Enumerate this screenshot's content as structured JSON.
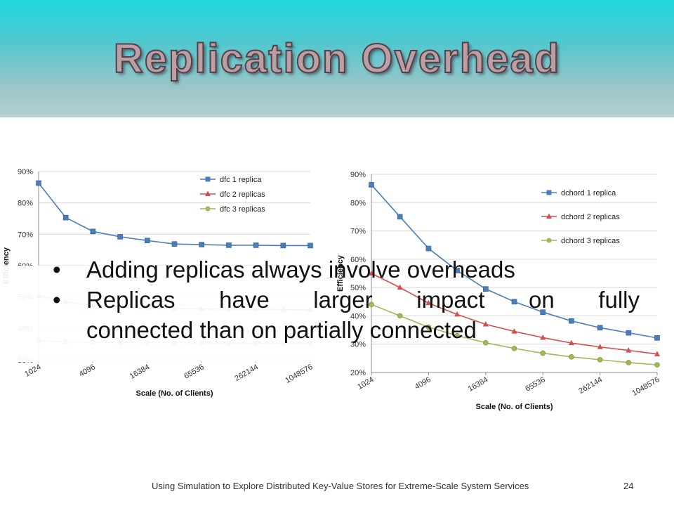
{
  "slide": {
    "title": "Replication Overhead",
    "bullets": [
      "Adding replicas always involve overheads",
      "Replicas have larger impact on fully",
      "connected than on partially connected"
    ],
    "footer": "Using Simulation to Explore Distributed Key-Value Stores for Extreme-Scale System Services",
    "page_number": "24"
  },
  "chart_data": [
    {
      "type": "line",
      "x": [
        "1024",
        "2048",
        "4096",
        "8192",
        "16384",
        "32768",
        "65536",
        "131072",
        "262144",
        "524288",
        "1048576"
      ],
      "x_tick_labels": [
        "1024",
        "4096",
        "16384",
        "65536",
        "262144",
        "1048576"
      ],
      "xlabel": "Scale (No. of Clients)",
      "ylabel": "Efficiency",
      "ylim": [
        30,
        90
      ],
      "y_ticks": [
        "30%",
        "40%",
        "50%",
        "60%",
        "70%",
        "80%",
        "90%"
      ],
      "grid": true,
      "legend_position": "top-right",
      "series": [
        {
          "name": "dfc 1 replica",
          "color": "#4a7ebb",
          "marker": "square",
          "values": [
            86.3,
            75.3,
            70.9,
            69.2,
            68.0,
            66.9,
            66.7,
            66.5,
            66.5,
            66.4,
            66.4
          ]
        },
        {
          "name": "dfc 2 replicas",
          "color": "#d0504d",
          "marker": "triangle",
          "values": [
            50.4,
            48.5,
            47.3,
            46.8,
            46.5,
            46.3,
            46.2,
            46.1,
            46.1,
            46.0,
            45.9
          ]
        },
        {
          "name": "dfc 3 replicas",
          "color": "#9bbb59",
          "marker": "circle",
          "values": [
            36.0,
            35.8,
            35.6,
            35.5,
            35.4,
            35.4,
            35.3,
            35.3,
            35.3,
            35.3,
            35.3
          ]
        }
      ]
    },
    {
      "type": "line",
      "x": [
        "1024",
        "2048",
        "4096",
        "8192",
        "16384",
        "32768",
        "65536",
        "131072",
        "262144",
        "524288",
        "1048576"
      ],
      "x_tick_labels": [
        "1024",
        "4096",
        "16384",
        "65536",
        "262144",
        "1048576"
      ],
      "xlabel": "Scale (No. of Clients)",
      "ylabel": "Efficiency",
      "ylim": [
        20,
        90
      ],
      "y_ticks": [
        "20%",
        "30%",
        "40%",
        "50%",
        "60%",
        "70%",
        "80%",
        "90%"
      ],
      "grid": true,
      "legend_position": "right",
      "series": [
        {
          "name": "dchord 1 replica",
          "color": "#4a7ebb",
          "marker": "square",
          "values": [
            86.3,
            75.0,
            63.8,
            56.0,
            49.5,
            45.0,
            41.3,
            38.2,
            35.8,
            34.0,
            32.2
          ]
        },
        {
          "name": "dchord 2 replicas",
          "color": "#d0504d",
          "marker": "triangle",
          "values": [
            55.0,
            50.0,
            44.5,
            40.5,
            37.0,
            34.5,
            32.3,
            30.4,
            29.0,
            27.8,
            26.5
          ]
        },
        {
          "name": "dchord 3 replicas",
          "color": "#9bbb59",
          "marker": "circle",
          "values": [
            44.0,
            40.0,
            36.0,
            33.0,
            30.5,
            28.5,
            26.8,
            25.5,
            24.5,
            23.5,
            22.7
          ]
        }
      ]
    }
  ]
}
